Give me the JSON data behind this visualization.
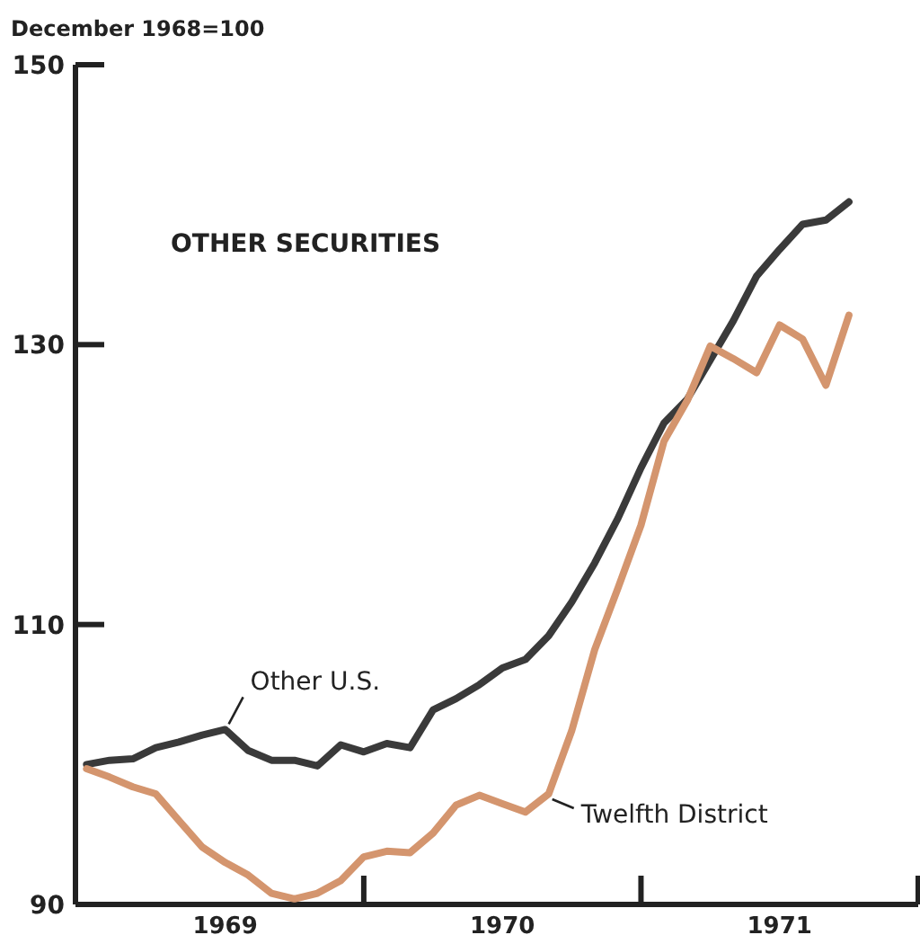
{
  "chart_data": {
    "type": "line",
    "title": "OTHER SECURITIES",
    "ylabel": "December 1968=100",
    "ylim": [
      90,
      150
    ],
    "yticks": [
      90,
      110,
      130,
      150
    ],
    "xlim": [
      1968.96,
      1972
    ],
    "xticks": [
      {
        "value": 1969.5,
        "label": "1969"
      },
      {
        "value": 1970,
        "label": null
      },
      {
        "value": 1970.5,
        "label": "1970"
      },
      {
        "value": 1971,
        "label": null
      },
      {
        "value": 1971.5,
        "label": "1971"
      },
      {
        "value": 1972,
        "label": null
      }
    ],
    "x": [
      1969,
      1969.083,
      1969.167,
      1969.25,
      1969.333,
      1969.417,
      1969.5,
      1969.583,
      1969.667,
      1969.75,
      1969.833,
      1969.917,
      1970,
      1970.083,
      1970.167,
      1970.25,
      1970.333,
      1970.417,
      1970.5,
      1970.583,
      1970.667,
      1970.75,
      1970.833,
      1970.917,
      1971,
      1971.083,
      1971.167,
      1971.25,
      1971.333,
      1971.417,
      1971.5,
      1971.583,
      1971.667,
      1971.75
    ],
    "grid": false,
    "marker": "none",
    "line_style": "solid",
    "series": [
      {
        "name": "Other U.S.",
        "color": "#3a3a3a",
        "values": [
          100,
          100.3,
          100.4,
          101.2,
          101.6,
          102.1,
          102.5,
          101,
          100.3,
          100.3,
          99.9,
          101.4,
          100.9,
          101.5,
          101.2,
          103.9,
          104.7,
          105.7,
          106.9,
          107.5,
          109.2,
          111.6,
          114.4,
          117.6,
          121.2,
          124.4,
          126.1,
          128.9,
          131.7,
          134.9,
          136.8,
          138.6,
          138.9,
          140.2
        ]
      },
      {
        "name": "Twelfth District",
        "color": "#d4956e",
        "values": [
          99.7,
          99.1,
          98.4,
          97.9,
          96,
          94.1,
          93,
          92.1,
          90.8,
          90.4,
          90.8,
          91.7,
          93.4,
          93.8,
          93.7,
          95.1,
          97.1,
          97.8,
          97.2,
          96.6,
          97.9,
          102.4,
          108.2,
          112.6,
          117.1,
          123.1,
          126,
          129.9,
          129,
          128,
          131.4,
          130.4,
          127.1,
          132.1
        ]
      }
    ]
  }
}
